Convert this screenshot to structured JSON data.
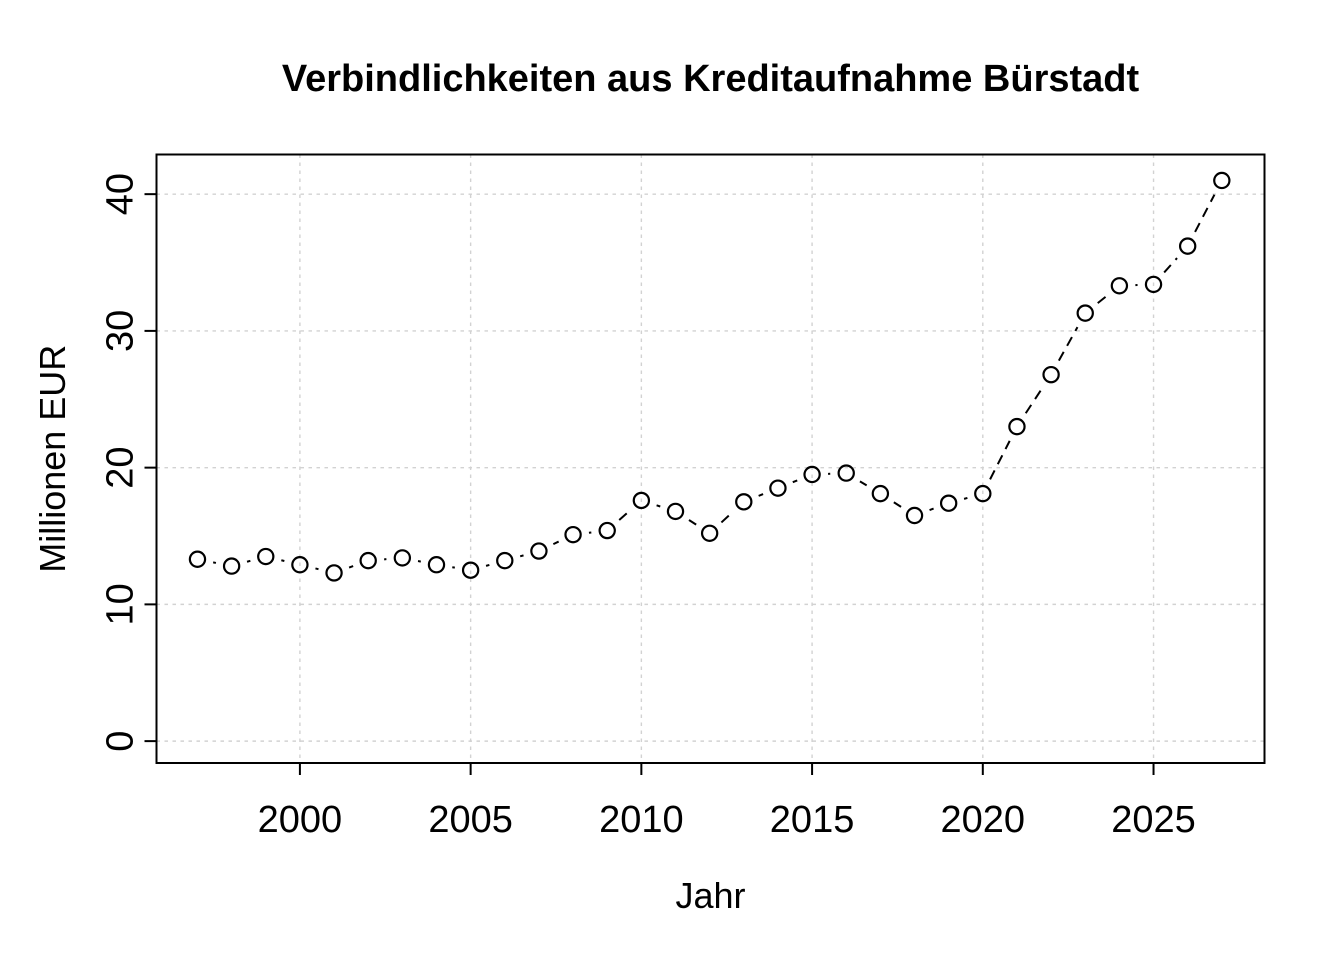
{
  "chart_data": {
    "type": "line",
    "title": "Verbindlichkeiten aus Kreditaufnahme Bürstadt",
    "xlabel": "Jahr",
    "ylabel": "Millionen EUR",
    "x": [
      1997,
      1998,
      1999,
      2000,
      2001,
      2002,
      2003,
      2004,
      2005,
      2006,
      2007,
      2008,
      2009,
      2010,
      2011,
      2012,
      2013,
      2014,
      2015,
      2016,
      2017,
      2018,
      2019,
      2020,
      2021,
      2022,
      2023,
      2024,
      2025,
      2026,
      2027
    ],
    "series": [
      {
        "name": "Verbindlichkeiten aus Kreditaufnahme",
        "values": [
          13.3,
          12.8,
          13.5,
          12.9,
          12.3,
          13.2,
          13.4,
          12.9,
          12.5,
          13.2,
          13.9,
          15.1,
          15.4,
          17.6,
          16.8,
          15.2,
          17.5,
          18.5,
          19.5,
          19.6,
          18.1,
          16.5,
          17.4,
          18.1,
          23.0,
          26.8,
          31.3,
          33.3,
          33.4,
          36.2,
          41.0
        ]
      }
    ],
    "x_ticks": [
      2000,
      2005,
      2010,
      2015,
      2020,
      2025
    ],
    "x_tick_labels": [
      "2000",
      "2005",
      "2010",
      "2015",
      "2020",
      "2025"
    ],
    "y_ticks": [
      0,
      10,
      20,
      30,
      40
    ],
    "y_tick_labels": [
      "0",
      "10",
      "20",
      "30",
      "40"
    ],
    "xlim": [
      1995.8,
      2028.25
    ],
    "ylim": [
      -1.6,
      42.9
    ],
    "grid": true,
    "legend": null,
    "marker": "open-circle",
    "line_style": "dashed",
    "colors": {
      "foreground": "#000000",
      "background": "#ffffff",
      "gridline": "#d2d2d2"
    }
  }
}
